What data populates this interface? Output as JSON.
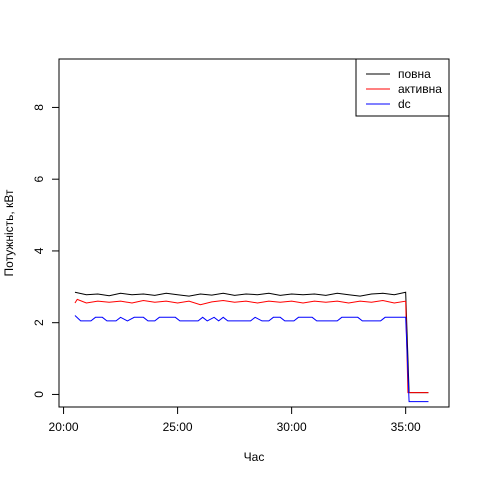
{
  "chart_data": {
    "type": "line",
    "title": "",
    "xlabel": "Час",
    "ylabel": "Потужність, кВт",
    "xlim_minutes": [
      19.8,
      36.9
    ],
    "ylim": [
      -0.35,
      9.35
    ],
    "x_ticks": [
      {
        "value": 20,
        "label": "20:00"
      },
      {
        "value": 25,
        "label": "25:00"
      },
      {
        "value": 30,
        "label": "30:00"
      },
      {
        "value": 35,
        "label": "35:00"
      }
    ],
    "y_ticks": [
      {
        "value": 0,
        "label": "0"
      },
      {
        "value": 2,
        "label": "2"
      },
      {
        "value": 4,
        "label": "4"
      },
      {
        "value": 6,
        "label": "6"
      },
      {
        "value": 8,
        "label": "8"
      }
    ],
    "grid": false,
    "legend": "top-right",
    "series": [
      {
        "name": "повна",
        "color": "#000000",
        "points": [
          [
            20.5,
            2.85
          ],
          [
            21.0,
            2.78
          ],
          [
            21.5,
            2.8
          ],
          [
            22.0,
            2.75
          ],
          [
            22.5,
            2.82
          ],
          [
            23.0,
            2.78
          ],
          [
            23.5,
            2.8
          ],
          [
            24.0,
            2.76
          ],
          [
            24.5,
            2.82
          ],
          [
            25.0,
            2.78
          ],
          [
            25.5,
            2.74
          ],
          [
            26.0,
            2.8
          ],
          [
            26.5,
            2.77
          ],
          [
            27.0,
            2.82
          ],
          [
            27.5,
            2.76
          ],
          [
            28.0,
            2.8
          ],
          [
            28.5,
            2.78
          ],
          [
            29.0,
            2.82
          ],
          [
            29.5,
            2.76
          ],
          [
            30.0,
            2.8
          ],
          [
            30.5,
            2.78
          ],
          [
            31.0,
            2.8
          ],
          [
            31.5,
            2.76
          ],
          [
            32.0,
            2.82
          ],
          [
            32.5,
            2.78
          ],
          [
            33.0,
            2.74
          ],
          [
            33.5,
            2.8
          ],
          [
            34.0,
            2.82
          ],
          [
            34.5,
            2.78
          ],
          [
            35.0,
            2.85
          ],
          [
            35.15,
            0.05
          ],
          [
            36.0,
            0.05
          ]
        ]
      },
      {
        "name": "активна",
        "color": "#ff0000",
        "points": [
          [
            20.5,
            2.55
          ],
          [
            20.6,
            2.65
          ],
          [
            21.0,
            2.55
          ],
          [
            21.5,
            2.6
          ],
          [
            22.0,
            2.57
          ],
          [
            22.5,
            2.6
          ],
          [
            23.0,
            2.55
          ],
          [
            23.5,
            2.62
          ],
          [
            24.0,
            2.57
          ],
          [
            24.5,
            2.6
          ],
          [
            25.0,
            2.55
          ],
          [
            25.5,
            2.6
          ],
          [
            26.0,
            2.5
          ],
          [
            26.5,
            2.58
          ],
          [
            27.0,
            2.62
          ],
          [
            27.5,
            2.57
          ],
          [
            28.0,
            2.6
          ],
          [
            28.5,
            2.55
          ],
          [
            29.0,
            2.6
          ],
          [
            29.5,
            2.57
          ],
          [
            30.0,
            2.6
          ],
          [
            30.5,
            2.55
          ],
          [
            31.0,
            2.6
          ],
          [
            31.5,
            2.57
          ],
          [
            32.0,
            2.6
          ],
          [
            32.5,
            2.55
          ],
          [
            33.0,
            2.6
          ],
          [
            33.5,
            2.57
          ],
          [
            34.0,
            2.62
          ],
          [
            34.5,
            2.55
          ],
          [
            35.0,
            2.6
          ],
          [
            35.1,
            0.05
          ],
          [
            36.0,
            0.05
          ]
        ]
      },
      {
        "name": "dc",
        "color": "#0000ff",
        "points": [
          [
            20.5,
            2.2
          ],
          [
            20.75,
            2.05
          ],
          [
            21.2,
            2.05
          ],
          [
            21.4,
            2.15
          ],
          [
            21.7,
            2.15
          ],
          [
            21.9,
            2.05
          ],
          [
            22.3,
            2.05
          ],
          [
            22.5,
            2.15
          ],
          [
            22.8,
            2.05
          ],
          [
            23.1,
            2.15
          ],
          [
            23.5,
            2.15
          ],
          [
            23.7,
            2.05
          ],
          [
            24.0,
            2.05
          ],
          [
            24.2,
            2.15
          ],
          [
            24.9,
            2.15
          ],
          [
            25.1,
            2.05
          ],
          [
            25.9,
            2.05
          ],
          [
            26.1,
            2.15
          ],
          [
            26.3,
            2.05
          ],
          [
            26.6,
            2.15
          ],
          [
            26.8,
            2.05
          ],
          [
            27.0,
            2.15
          ],
          [
            27.2,
            2.05
          ],
          [
            28.2,
            2.05
          ],
          [
            28.4,
            2.15
          ],
          [
            28.7,
            2.05
          ],
          [
            29.0,
            2.05
          ],
          [
            29.2,
            2.15
          ],
          [
            29.5,
            2.15
          ],
          [
            29.7,
            2.05
          ],
          [
            30.1,
            2.05
          ],
          [
            30.3,
            2.15
          ],
          [
            30.9,
            2.15
          ],
          [
            31.1,
            2.05
          ],
          [
            32.0,
            2.05
          ],
          [
            32.2,
            2.15
          ],
          [
            32.9,
            2.15
          ],
          [
            33.1,
            2.05
          ],
          [
            33.9,
            2.05
          ],
          [
            34.1,
            2.15
          ],
          [
            35.0,
            2.15
          ],
          [
            35.15,
            -0.2
          ],
          [
            36.0,
            -0.2
          ]
        ]
      }
    ]
  }
}
